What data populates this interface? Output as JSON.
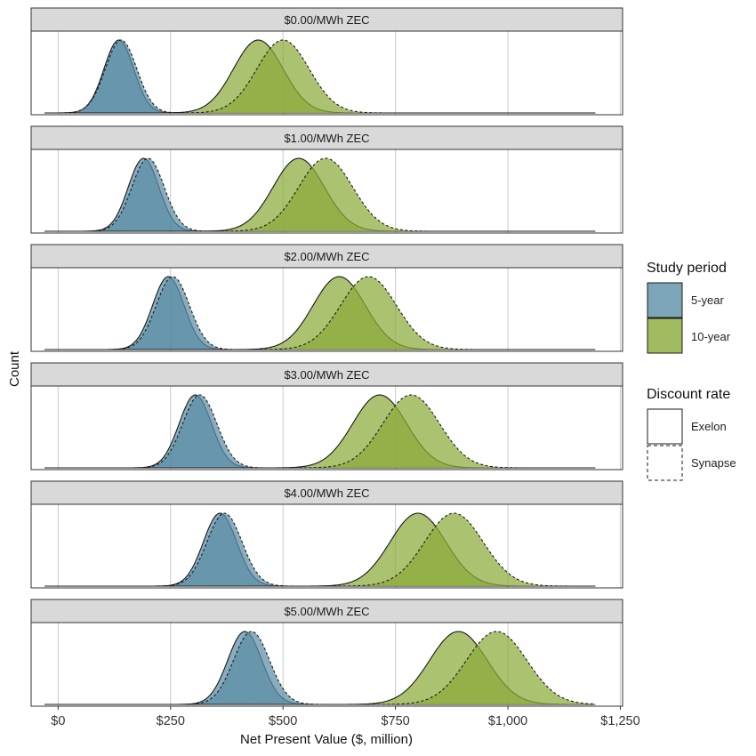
{
  "chart_data": {
    "type": "area",
    "xlabel": "Net Present Value ($, million)",
    "ylabel": "Count",
    "xlim": [
      -60,
      1255
    ],
    "x_ticks": [
      0,
      250,
      500,
      750,
      1000,
      1250
    ],
    "x_tick_labels": [
      "$0",
      "$250",
      "$500",
      "$750",
      "$1,000",
      "$1,250"
    ],
    "grid": true,
    "legend_position": "right",
    "colors": {
      "5-year": "#5b8ea6",
      "10-year": "#8aaa3a"
    },
    "legend": {
      "study_period": {
        "title": "Study period",
        "items": [
          "5-year",
          "10-year"
        ]
      },
      "discount_rate": {
        "title": "Discount rate",
        "items": [
          "Exelon",
          "Synapse"
        ]
      }
    },
    "panels": [
      {
        "label": "$0.00/MWh ZEC",
        "series": [
          {
            "period": "5-year",
            "rate": "Exelon",
            "peak": 135,
            "sd": 33
          },
          {
            "period": "5-year",
            "rate": "Synapse",
            "peak": 140,
            "sd": 35
          },
          {
            "period": "10-year",
            "rate": "Exelon",
            "peak": 445,
            "sd": 55
          },
          {
            "period": "10-year",
            "rate": "Synapse",
            "peak": 500,
            "sd": 58
          }
        ]
      },
      {
        "label": "$1.00/MWh ZEC",
        "series": [
          {
            "period": "5-year",
            "rate": "Exelon",
            "peak": 190,
            "sd": 34
          },
          {
            "period": "5-year",
            "rate": "Synapse",
            "peak": 200,
            "sd": 36
          },
          {
            "period": "10-year",
            "rate": "Exelon",
            "peak": 535,
            "sd": 57
          },
          {
            "period": "10-year",
            "rate": "Synapse",
            "peak": 595,
            "sd": 60
          }
        ]
      },
      {
        "label": "$2.00/MWh ZEC",
        "series": [
          {
            "period": "5-year",
            "rate": "Exelon",
            "peak": 245,
            "sd": 35
          },
          {
            "period": "5-year",
            "rate": "Synapse",
            "peak": 255,
            "sd": 37
          },
          {
            "period": "10-year",
            "rate": "Exelon",
            "peak": 625,
            "sd": 58
          },
          {
            "period": "10-year",
            "rate": "Synapse",
            "peak": 690,
            "sd": 62
          }
        ]
      },
      {
        "label": "$3.00/MWh ZEC",
        "series": [
          {
            "period": "5-year",
            "rate": "Exelon",
            "peak": 305,
            "sd": 36
          },
          {
            "period": "5-year",
            "rate": "Synapse",
            "peak": 315,
            "sd": 38
          },
          {
            "period": "10-year",
            "rate": "Exelon",
            "peak": 715,
            "sd": 60
          },
          {
            "period": "10-year",
            "rate": "Synapse",
            "peak": 785,
            "sd": 63
          }
        ]
      },
      {
        "label": "$4.00/MWh ZEC",
        "series": [
          {
            "period": "5-year",
            "rate": "Exelon",
            "peak": 360,
            "sd": 37
          },
          {
            "period": "5-year",
            "rate": "Synapse",
            "peak": 370,
            "sd": 39
          },
          {
            "period": "10-year",
            "rate": "Exelon",
            "peak": 800,
            "sd": 62
          },
          {
            "period": "10-year",
            "rate": "Synapse",
            "peak": 880,
            "sd": 65
          }
        ]
      },
      {
        "label": "$5.00/MWh ZEC",
        "series": [
          {
            "period": "5-year",
            "rate": "Exelon",
            "peak": 415,
            "sd": 38
          },
          {
            "period": "5-year",
            "rate": "Synapse",
            "peak": 430,
            "sd": 40
          },
          {
            "period": "10-year",
            "rate": "Exelon",
            "peak": 890,
            "sd": 64
          },
          {
            "period": "10-year",
            "rate": "Synapse",
            "peak": 975,
            "sd": 67
          }
        ]
      }
    ]
  }
}
